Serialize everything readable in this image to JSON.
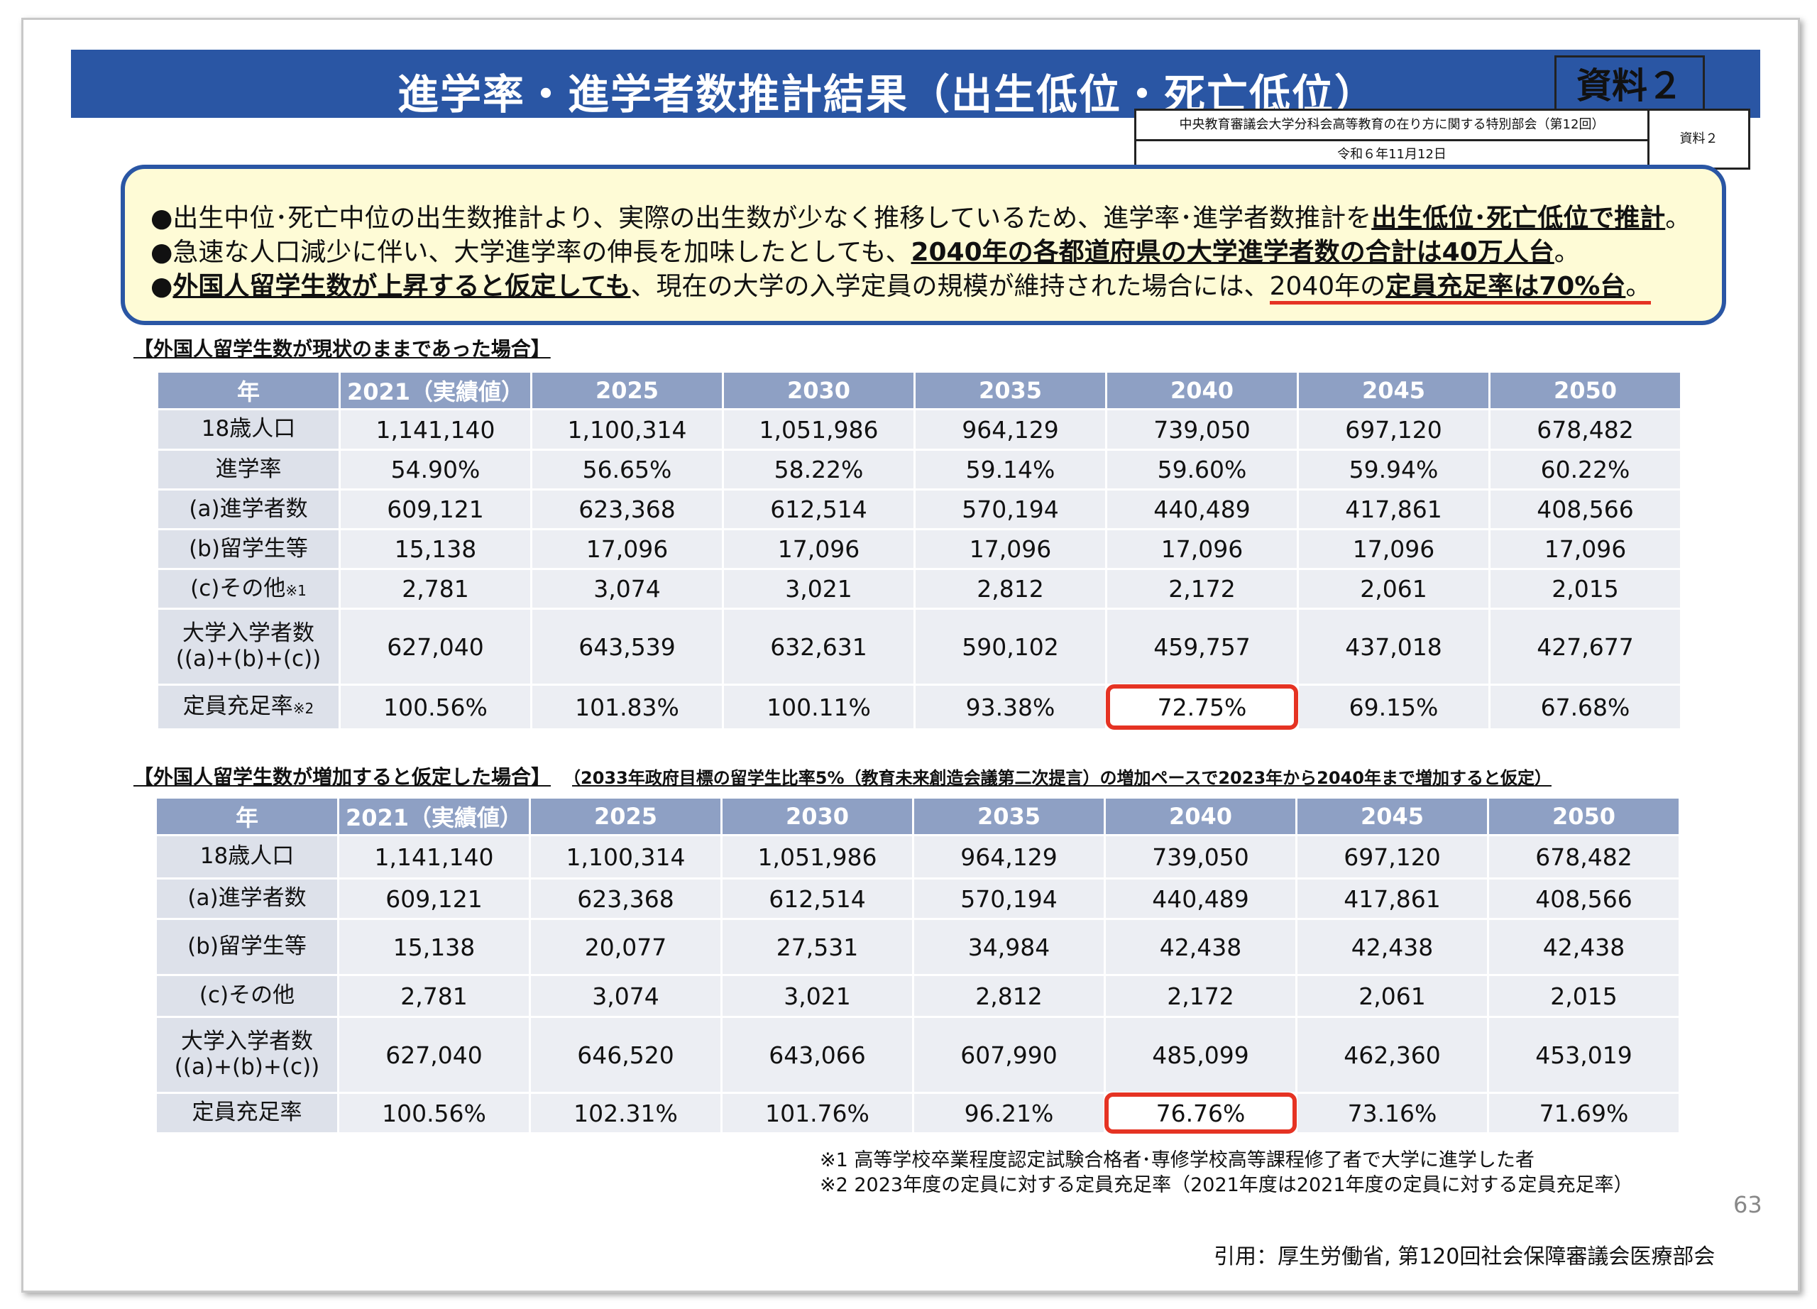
{
  "header": {
    "title": "進学率・進学者数推計結果（出生低位・死亡低位）",
    "doc_label": "資料２"
  },
  "meta": {
    "committee": "中央教育審議会大学分科会高等教育の在り方に関する特別部会（第12回）",
    "date": "令和６年11月12日",
    "doc_label": "資料２"
  },
  "summary": {
    "l1_a": "●出生中位･死亡中位の出生数推計より、実際の出生数が少なく推移しているため、進学率･進学者数推計を",
    "l1_b": "出生低位･死亡低位で推計",
    "l1_c": "。",
    "l2_a": "●急速な人口減少に伴い、大学進学率の伸長を加味したとしても、",
    "l2_b": "2040年の各都道府県の大学進学者数の合計は40万人台",
    "l2_c": "。",
    "l3_a": "●",
    "l3_b": "外国人留学生数が上昇すると仮定しても",
    "l3_c": "、現在の大学の入学定員の規模が維持された場合には、",
    "l3_d": "2040年の",
    "l3_e": "定員充足率は70%台",
    "l3_f": "。"
  },
  "table1": {
    "label": "【外国人留学生数が現状のままであった場合】",
    "headers": [
      "年",
      "2021（実績値）",
      "2025",
      "2030",
      "2035",
      "2040",
      "2045",
      "2050"
    ],
    "rows": [
      {
        "label": "18歳人口",
        "note": "",
        "values": [
          "1,141,140",
          "1,100,314",
          "1,051,986",
          "964,129",
          "739,050",
          "697,120",
          "678,482"
        ]
      },
      {
        "label": "進学率",
        "note": "",
        "values": [
          "54.90%",
          "56.65%",
          "58.22%",
          "59.14%",
          "59.60%",
          "59.94%",
          "60.22%"
        ]
      },
      {
        "label": "(a)進学者数",
        "note": "",
        "values": [
          "609,121",
          "623,368",
          "612,514",
          "570,194",
          "440,489",
          "417,861",
          "408,566"
        ]
      },
      {
        "label": "(b)留学生等",
        "note": "",
        "values": [
          "15,138",
          "17,096",
          "17,096",
          "17,096",
          "17,096",
          "17,096",
          "17,096"
        ]
      },
      {
        "label": "(c)その他",
        "note": "※1",
        "values": [
          "2,781",
          "3,074",
          "3,021",
          "2,812",
          "2,172",
          "2,061",
          "2,015"
        ]
      },
      {
        "label": "大学入学者数",
        "label2": "((a)+(b)+(c))",
        "note": "",
        "values": [
          "627,040",
          "643,539",
          "632,631",
          "590,102",
          "459,757",
          "437,018",
          "427,677"
        ]
      },
      {
        "label": "定員充足率",
        "note": "※2",
        "values": [
          "100.56%",
          "101.83%",
          "100.11%",
          "93.38%",
          "72.75%",
          "69.15%",
          "67.68%"
        ]
      }
    ]
  },
  "table2": {
    "label": "【外国人留学生数が増加すると仮定した場合】",
    "sublabel": "（2033年政府目標の留学生比率5%（教育未来創造会議第二次提言）の増加ペースで2023年から2040年まで増加すると仮定）",
    "headers": [
      "年",
      "2021（実績値）",
      "2025",
      "2030",
      "2035",
      "2040",
      "2045",
      "2050"
    ],
    "rows": [
      {
        "label": "18歳人口",
        "values": [
          "1,141,140",
          "1,100,314",
          "1,051,986",
          "964,129",
          "739,050",
          "697,120",
          "678,482"
        ]
      },
      {
        "label": "(a)進学者数",
        "values": [
          "609,121",
          "623,368",
          "612,514",
          "570,194",
          "440,489",
          "417,861",
          "408,566"
        ]
      },
      {
        "label": "(b)留学生等",
        "values": [
          "15,138",
          "20,077",
          "27,531",
          "34,984",
          "42,438",
          "42,438",
          "42,438"
        ]
      },
      {
        "label": "(c)その他",
        "values": [
          "2,781",
          "3,074",
          "3,021",
          "2,812",
          "2,172",
          "2,061",
          "2,015"
        ]
      },
      {
        "label": "大学入学者数",
        "label2": "((a)+(b)+(c))",
        "values": [
          "627,040",
          "646,520",
          "643,066",
          "607,990",
          "485,099",
          "462,360",
          "453,019"
        ]
      },
      {
        "label": "定員充足率",
        "values": [
          "100.56%",
          "102.31%",
          "101.76%",
          "96.21%",
          "76.76%",
          "73.16%",
          "71.69%"
        ]
      }
    ]
  },
  "footnotes": [
    "※1  高等学校卒業程度認定試験合格者･専修学校高等課程修了者で大学に進学した者",
    "※2  2023年度の定員に対する定員充足率（2021年度は2021年度の定員に対する定員充足率）"
  ],
  "page_number": "63",
  "citation": "引用：厚生労働省, 第120回社会保障審議会医療部会",
  "colors": {
    "title_bar": "#2a56a4",
    "header_cell": "#8ea0c4",
    "highlight": "#e53323",
    "summary_bg": "#fefbd6"
  }
}
